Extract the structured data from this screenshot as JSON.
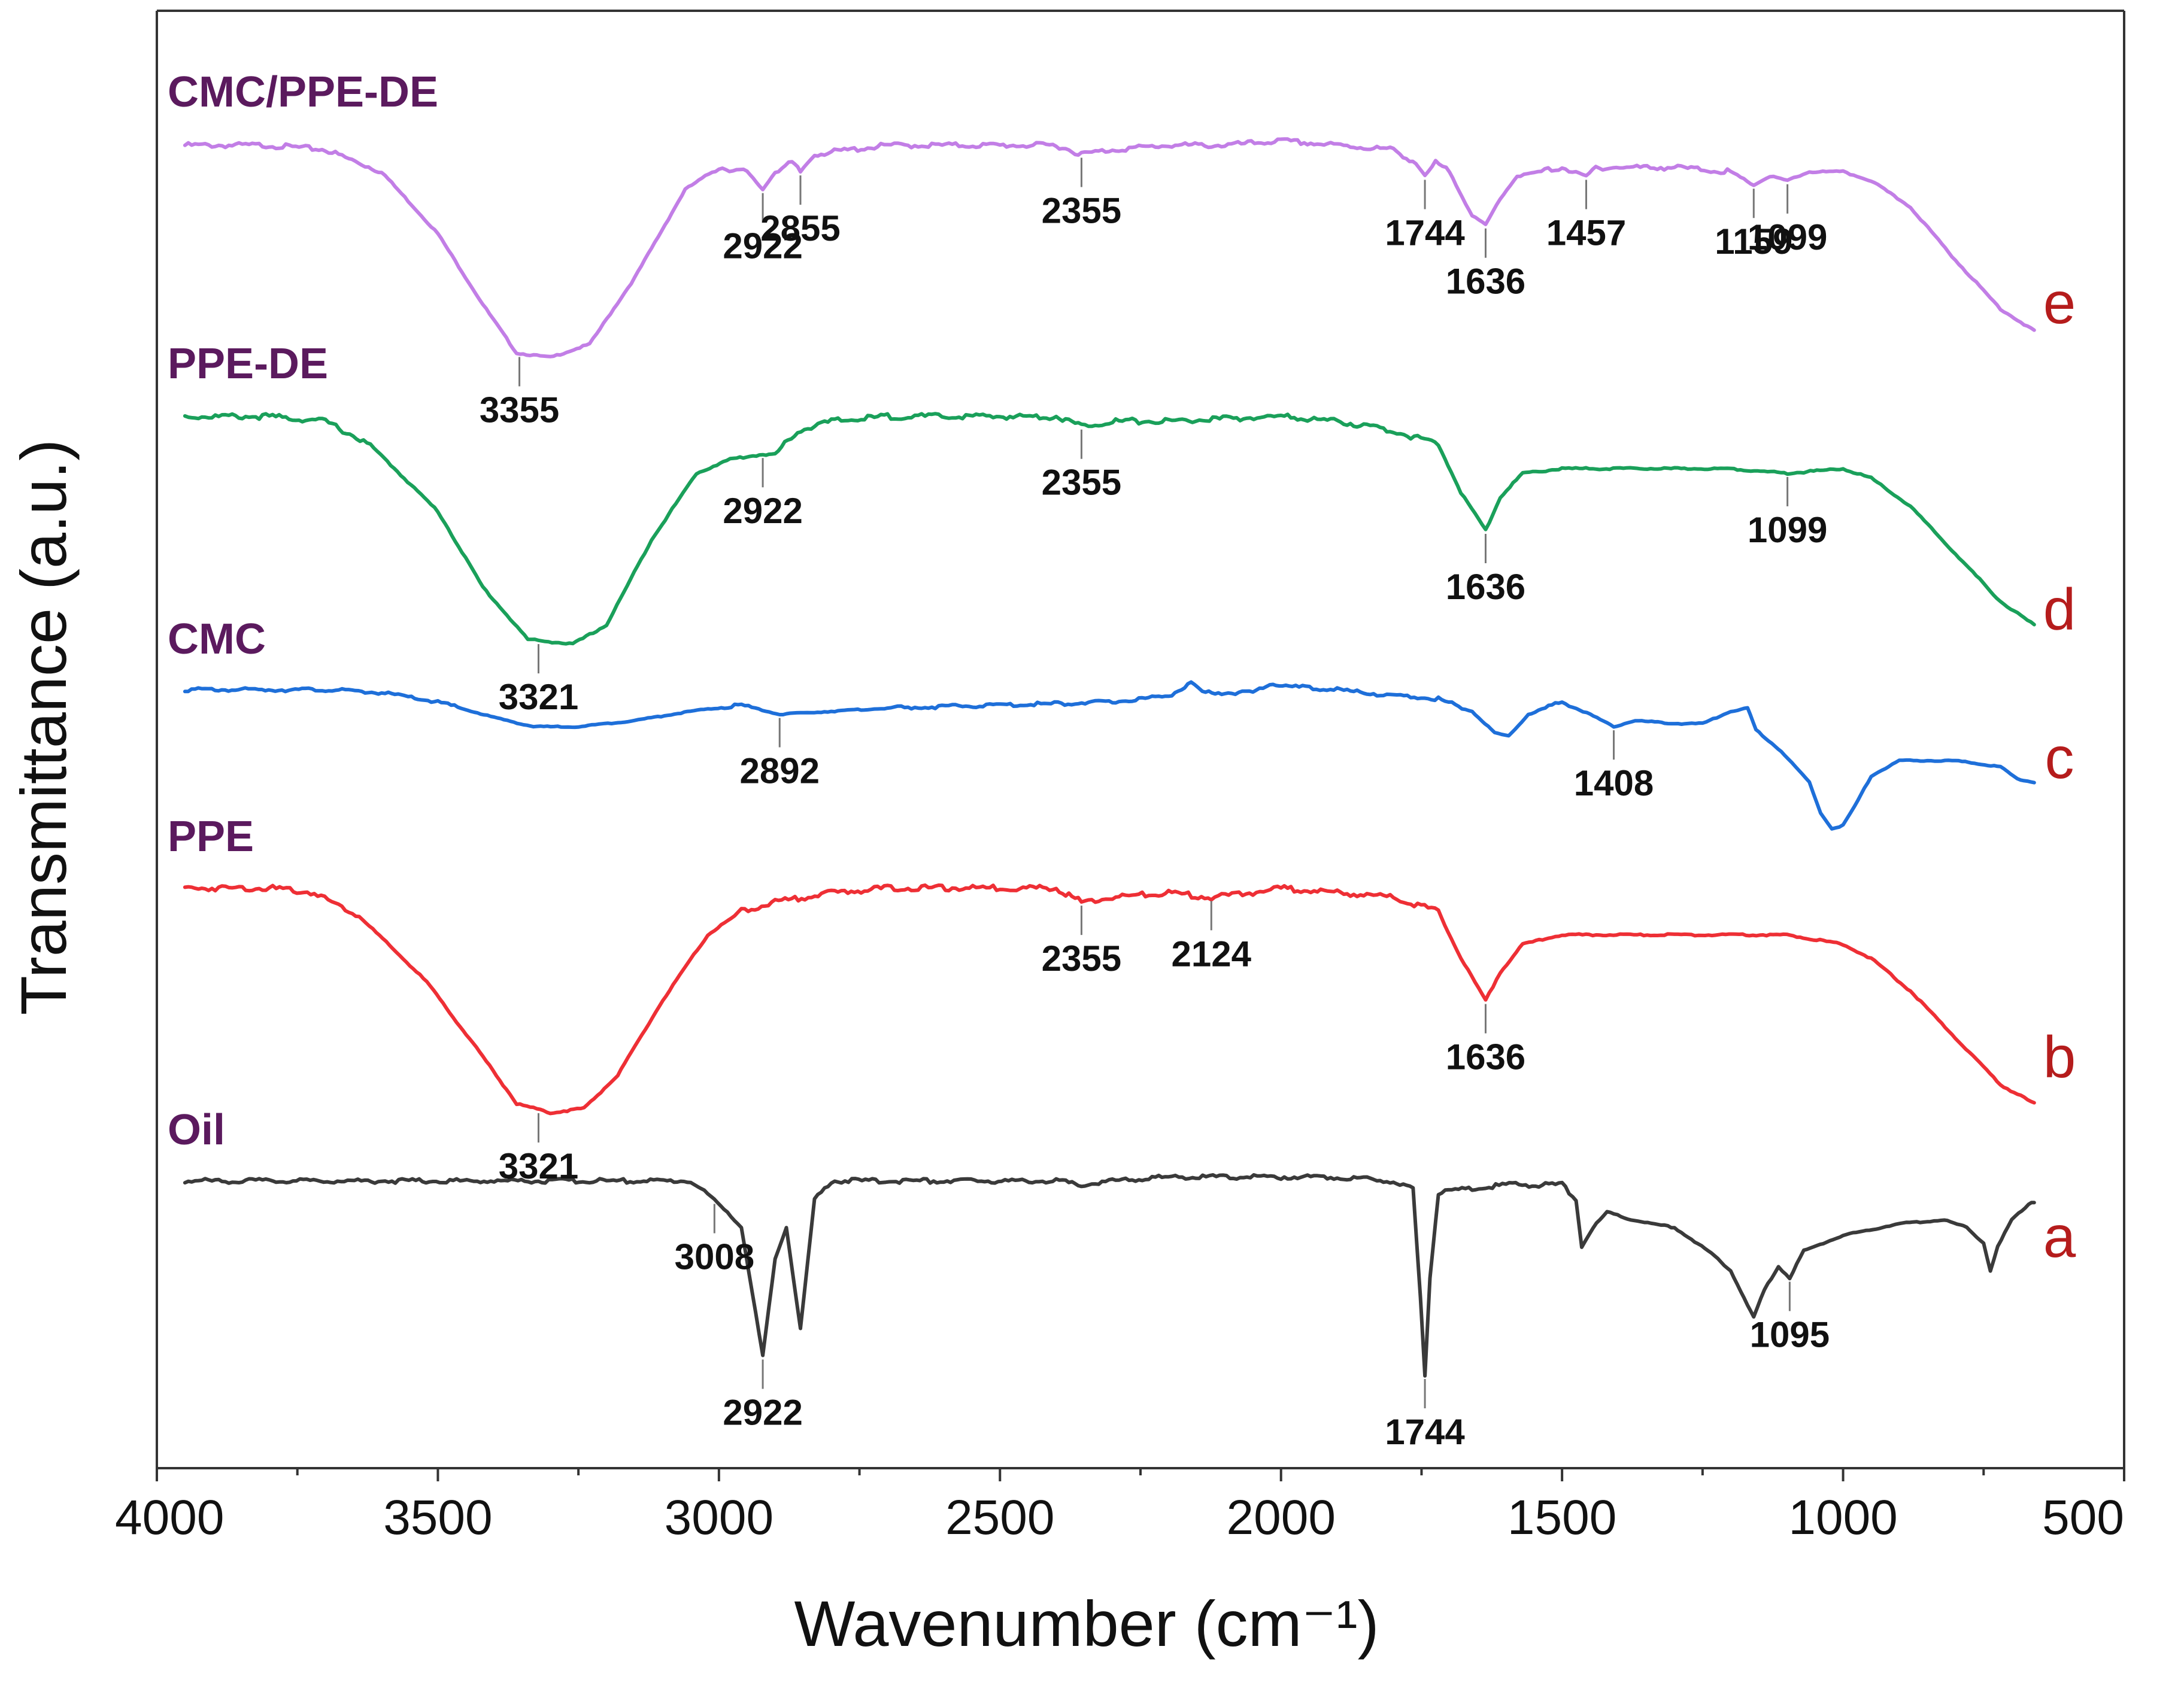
{
  "chart_data": {
    "type": "line",
    "title": "",
    "xlabel": "Wavenumber (cm⁻¹)",
    "ylabel": "Transmittance (a.u.)",
    "xlim": [
      4000,
      500
    ],
    "x_ticks": [
      "4000",
      "3500",
      "3000",
      "2500",
      "2000",
      "1500",
      "1000",
      "500"
    ],
    "colors": {
      "name_label": "#5b1a5e",
      "letter_label": "#b51c1c",
      "axis": "#333333"
    },
    "series": [
      {
        "id": "e",
        "name": "CMC/PPE-DE",
        "letter": "e",
        "color": "#c27ee6",
        "points": [
          [
            3950,
            0.5
          ],
          [
            3800,
            0.5
          ],
          [
            3700,
            0.49
          ],
          [
            3600,
            0.44
          ],
          [
            3500,
            0.3
          ],
          [
            3420,
            0.14
          ],
          [
            3360,
            0.03
          ],
          [
            3300,
            0.02
          ],
          [
            3230,
            0.05
          ],
          [
            3150,
            0.2
          ],
          [
            3060,
            0.4
          ],
          [
            3000,
            0.45
          ],
          [
            2950,
            0.44
          ],
          [
            2922,
            0.4
          ],
          [
            2900,
            0.44
          ],
          [
            2870,
            0.46
          ],
          [
            2855,
            0.44
          ],
          [
            2830,
            0.48
          ],
          [
            2700,
            0.5
          ],
          [
            2500,
            0.5
          ],
          [
            2400,
            0.5
          ],
          [
            2355,
            0.48
          ],
          [
            2300,
            0.49
          ],
          [
            2200,
            0.5
          ],
          [
            2100,
            0.5
          ],
          [
            2000,
            0.51
          ],
          [
            1900,
            0.5
          ],
          [
            1800,
            0.49
          ],
          [
            1760,
            0.46
          ],
          [
            1744,
            0.43
          ],
          [
            1725,
            0.46
          ],
          [
            1700,
            0.44
          ],
          [
            1660,
            0.34
          ],
          [
            1636,
            0.32
          ],
          [
            1610,
            0.38
          ],
          [
            1580,
            0.43
          ],
          [
            1500,
            0.45
          ],
          [
            1457,
            0.43
          ],
          [
            1440,
            0.45
          ],
          [
            1300,
            0.45
          ],
          [
            1200,
            0.44
          ],
          [
            1159,
            0.41
          ],
          [
            1130,
            0.43
          ],
          [
            1099,
            0.42
          ],
          [
            1060,
            0.44
          ],
          [
            1000,
            0.44
          ],
          [
            950,
            0.42
          ],
          [
            880,
            0.36
          ],
          [
            800,
            0.24
          ],
          [
            720,
            0.13
          ],
          [
            660,
            0.08
          ]
        ]
      },
      {
        "id": "d",
        "name": "PPE-DE",
        "letter": "d",
        "color": "#1aa05a",
        "points": [
          [
            3950,
            0.5
          ],
          [
            3800,
            0.5
          ],
          [
            3700,
            0.49
          ],
          [
            3620,
            0.44
          ],
          [
            3500,
            0.3
          ],
          [
            3420,
            0.14
          ],
          [
            3340,
            0.03
          ],
          [
            3260,
            0.02
          ],
          [
            3200,
            0.06
          ],
          [
            3120,
            0.24
          ],
          [
            3040,
            0.38
          ],
          [
            2980,
            0.41
          ],
          [
            2922,
            0.42
          ],
          [
            2900,
            0.42
          ],
          [
            2860,
            0.47
          ],
          [
            2800,
            0.49
          ],
          [
            2700,
            0.5
          ],
          [
            2500,
            0.5
          ],
          [
            2400,
            0.5
          ],
          [
            2355,
            0.48
          ],
          [
            2300,
            0.49
          ],
          [
            2200,
            0.49
          ],
          [
            2000,
            0.5
          ],
          [
            1900,
            0.49
          ],
          [
            1800,
            0.47
          ],
          [
            1720,
            0.44
          ],
          [
            1680,
            0.34
          ],
          [
            1636,
            0.26
          ],
          [
            1610,
            0.33
          ],
          [
            1570,
            0.38
          ],
          [
            1500,
            0.39
          ],
          [
            1300,
            0.39
          ],
          [
            1200,
            0.39
          ],
          [
            1099,
            0.38
          ],
          [
            1000,
            0.39
          ],
          [
            950,
            0.37
          ],
          [
            880,
            0.31
          ],
          [
            800,
            0.21
          ],
          [
            720,
            0.11
          ],
          [
            660,
            0.06
          ]
        ]
      },
      {
        "id": "c",
        "name": "CMC",
        "letter": "c",
        "color": "#1e6fd9",
        "points": [
          [
            3950,
            0.5
          ],
          [
            3700,
            0.5
          ],
          [
            3600,
            0.49
          ],
          [
            3500,
            0.46
          ],
          [
            3400,
            0.41
          ],
          [
            3330,
            0.38
          ],
          [
            3250,
            0.38
          ],
          [
            3150,
            0.4
          ],
          [
            3050,
            0.43
          ],
          [
            2960,
            0.45
          ],
          [
            2892,
            0.42
          ],
          [
            2800,
            0.43
          ],
          [
            2700,
            0.44
          ],
          [
            2500,
            0.45
          ],
          [
            2300,
            0.46
          ],
          [
            2200,
            0.48
          ],
          [
            2160,
            0.52
          ],
          [
            2140,
            0.49
          ],
          [
            2100,
            0.49
          ],
          [
            2050,
            0.49
          ],
          [
            2020,
            0.52
          ],
          [
            1980,
            0.51
          ],
          [
            1900,
            0.5
          ],
          [
            1800,
            0.48
          ],
          [
            1720,
            0.47
          ],
          [
            1660,
            0.43
          ],
          [
            1620,
            0.36
          ],
          [
            1595,
            0.35
          ],
          [
            1560,
            0.42
          ],
          [
            1500,
            0.46
          ],
          [
            1450,
            0.42
          ],
          [
            1408,
            0.38
          ],
          [
            1370,
            0.4
          ],
          [
            1300,
            0.39
          ],
          [
            1250,
            0.39
          ],
          [
            1200,
            0.43
          ],
          [
            1170,
            0.44
          ],
          [
            1155,
            0.37
          ],
          [
            1110,
            0.3
          ],
          [
            1060,
            0.2
          ],
          [
            1040,
            0.1
          ],
          [
            1020,
            0.05
          ],
          [
            1000,
            0.06
          ],
          [
            980,
            0.12
          ],
          [
            950,
            0.22
          ],
          [
            900,
            0.27
          ],
          [
            850,
            0.27
          ],
          [
            800,
            0.27
          ],
          [
            760,
            0.26
          ],
          [
            720,
            0.25
          ],
          [
            690,
            0.21
          ],
          [
            660,
            0.2
          ]
        ]
      },
      {
        "id": "b",
        "name": "PPE",
        "letter": "b",
        "color": "#ee2f35",
        "points": [
          [
            3950,
            0.5
          ],
          [
            3800,
            0.5
          ],
          [
            3720,
            0.49
          ],
          [
            3640,
            0.44
          ],
          [
            3520,
            0.3
          ],
          [
            3420,
            0.14
          ],
          [
            3360,
            0.04
          ],
          [
            3300,
            0.02
          ],
          [
            3240,
            0.03
          ],
          [
            3180,
            0.1
          ],
          [
            3100,
            0.26
          ],
          [
            3020,
            0.4
          ],
          [
            2960,
            0.45
          ],
          [
            2900,
            0.47
          ],
          [
            2800,
            0.49
          ],
          [
            2700,
            0.5
          ],
          [
            2500,
            0.5
          ],
          [
            2400,
            0.5
          ],
          [
            2355,
            0.47
          ],
          [
            2300,
            0.48
          ],
          [
            2200,
            0.49
          ],
          [
            2124,
            0.48
          ],
          [
            2050,
            0.49
          ],
          [
            2000,
            0.5
          ],
          [
            1900,
            0.49
          ],
          [
            1800,
            0.48
          ],
          [
            1720,
            0.45
          ],
          [
            1680,
            0.35
          ],
          [
            1636,
            0.26
          ],
          [
            1610,
            0.32
          ],
          [
            1570,
            0.38
          ],
          [
            1500,
            0.4
          ],
          [
            1300,
            0.4
          ],
          [
            1100,
            0.4
          ],
          [
            1000,
            0.38
          ],
          [
            950,
            0.35
          ],
          [
            880,
            0.28
          ],
          [
            800,
            0.18
          ],
          [
            720,
            0.08
          ],
          [
            660,
            0.04
          ]
        ]
      },
      {
        "id": "a",
        "name": "Oil",
        "letter": "a",
        "color": "#3a3a3a",
        "points": [
          [
            3950,
            0.5
          ],
          [
            3800,
            0.5
          ],
          [
            3600,
            0.5
          ],
          [
            3400,
            0.5
          ],
          [
            3200,
            0.5
          ],
          [
            3050,
            0.5
          ],
          [
            3008,
            0.45
          ],
          [
            2985,
            0.42
          ],
          [
            2960,
            0.38
          ],
          [
            2922,
            0.05
          ],
          [
            2900,
            0.3
          ],
          [
            2880,
            0.38
          ],
          [
            2855,
            0.12
          ],
          [
            2830,
            0.45
          ],
          [
            2800,
            0.5
          ],
          [
            2600,
            0.5
          ],
          [
            2400,
            0.5
          ],
          [
            2355,
            0.49
          ],
          [
            2300,
            0.5
          ],
          [
            2200,
            0.51
          ],
          [
            2000,
            0.51
          ],
          [
            1900,
            0.51
          ],
          [
            1800,
            0.5
          ],
          [
            1765,
            0.48
          ],
          [
            1752,
            0.2
          ],
          [
            1744,
            0.0
          ],
          [
            1735,
            0.25
          ],
          [
            1720,
            0.47
          ],
          [
            1600,
            0.49
          ],
          [
            1500,
            0.49
          ],
          [
            1475,
            0.45
          ],
          [
            1465,
            0.33
          ],
          [
            1445,
            0.38
          ],
          [
            1420,
            0.42
          ],
          [
            1377,
            0.4
          ],
          [
            1300,
            0.38
          ],
          [
            1240,
            0.32
          ],
          [
            1200,
            0.27
          ],
          [
            1170,
            0.18
          ],
          [
            1159,
            0.15
          ],
          [
            1140,
            0.22
          ],
          [
            1115,
            0.28
          ],
          [
            1095,
            0.25
          ],
          [
            1070,
            0.32
          ],
          [
            1000,
            0.36
          ],
          [
            900,
            0.39
          ],
          [
            820,
            0.4
          ],
          [
            780,
            0.38
          ],
          [
            750,
            0.34
          ],
          [
            738,
            0.27
          ],
          [
            725,
            0.33
          ],
          [
            700,
            0.4
          ],
          [
            670,
            0.44
          ],
          [
            660,
            0.45
          ]
        ]
      }
    ],
    "annotations": [
      {
        "series": "e",
        "label": "3355",
        "x": 3355
      },
      {
        "series": "e",
        "label": "2922",
        "x": 2922
      },
      {
        "series": "e",
        "label": "2855",
        "x": 2855
      },
      {
        "series": "e",
        "label": "2355",
        "x": 2355
      },
      {
        "series": "e",
        "label": "1744",
        "x": 1744
      },
      {
        "series": "e",
        "label": "1636",
        "x": 1636
      },
      {
        "series": "e",
        "label": "1457",
        "x": 1457
      },
      {
        "series": "e",
        "label": "1159",
        "x": 1159
      },
      {
        "series": "e",
        "label": "1099",
        "x": 1099
      },
      {
        "series": "d",
        "label": "3321",
        "x": 3321
      },
      {
        "series": "d",
        "label": "2922",
        "x": 2922
      },
      {
        "series": "d",
        "label": "2355",
        "x": 2355
      },
      {
        "series": "d",
        "label": "1636",
        "x": 1636
      },
      {
        "series": "d",
        "label": "1099",
        "x": 1099
      },
      {
        "series": "c",
        "label": "2892",
        "x": 2892
      },
      {
        "series": "c",
        "label": "1408",
        "x": 1408
      },
      {
        "series": "b",
        "label": "3321",
        "x": 3321
      },
      {
        "series": "b",
        "label": "2355",
        "x": 2355
      },
      {
        "series": "b",
        "label": "2124",
        "x": 2124
      },
      {
        "series": "b",
        "label": "1636",
        "x": 1636
      },
      {
        "series": "a",
        "label": "3008",
        "x": 3008
      },
      {
        "series": "a",
        "label": "2922",
        "x": 2922
      },
      {
        "series": "a",
        "label": "1744",
        "x": 1744
      },
      {
        "series": "a",
        "label": "1095",
        "x": 1095
      }
    ]
  }
}
